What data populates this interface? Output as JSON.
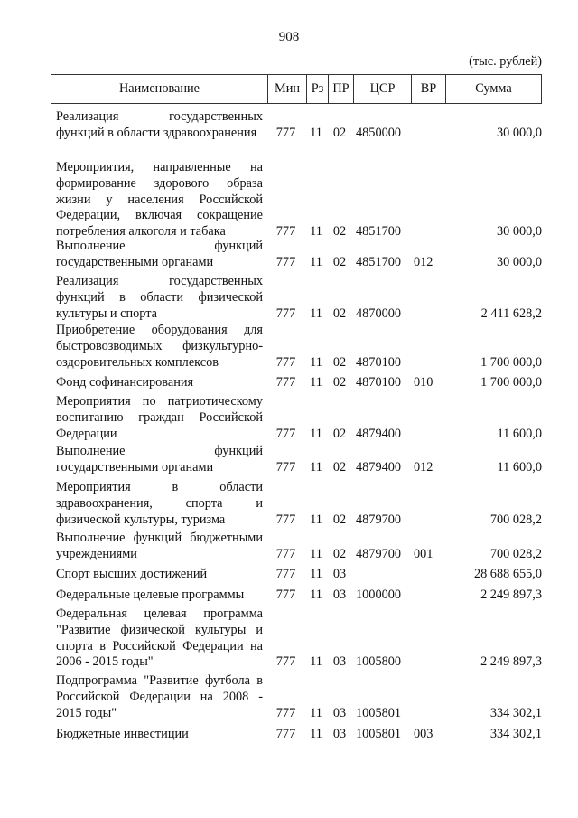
{
  "page_number": "908",
  "unit": "(тыс. рублей)",
  "headers": [
    "Наименование",
    "Мин",
    "Рз",
    "ПР",
    "ЦСР",
    "ВР",
    "Сумма"
  ],
  "rows": [
    {
      "name": "Реализация государственных функций в области здравоохранения",
      "min": "777",
      "rz": "11",
      "pr": "02",
      "csr": "4850000",
      "vr": "",
      "sum": "30 000,0"
    },
    {
      "name": "Мероприятия, направленные на формирование здорового образа жизни у населения Российской Федерации, включая сокращение потребления алкоголя и табака",
      "min": "777",
      "rz": "11",
      "pr": "02",
      "csr": "4851700",
      "vr": "",
      "sum": "30 000,0"
    },
    {
      "name": "Выполнение функций государственными органами",
      "min": "777",
      "rz": "11",
      "pr": "02",
      "csr": "4851700",
      "vr": "012",
      "sum": "30 000,0"
    },
    {
      "name": "Реализация государственных функций в области физической культуры и спорта",
      "min": "777",
      "rz": "11",
      "pr": "02",
      "csr": "4870000",
      "vr": "",
      "sum": "2 411 628,2"
    },
    {
      "name": "Приобретение оборудования для быстровозводимых физкультурно-оздоровительных комплексов",
      "min": "777",
      "rz": "11",
      "pr": "02",
      "csr": "4870100",
      "vr": "",
      "sum": "1 700 000,0"
    },
    {
      "name": "Фонд софинансирования",
      "min": "777",
      "rz": "11",
      "pr": "02",
      "csr": "4870100",
      "vr": "010",
      "sum": "1 700 000,0"
    },
    {
      "name": "Мероприятия по патриотическому воспитанию граждан Российской Федерации",
      "min": "777",
      "rz": "11",
      "pr": "02",
      "csr": "4879400",
      "vr": "",
      "sum": "11 600,0"
    },
    {
      "name": "Выполнение функций государственными органами",
      "min": "777",
      "rz": "11",
      "pr": "02",
      "csr": "4879400",
      "vr": "012",
      "sum": "11 600,0"
    },
    {
      "name": "Мероприятия в области здравоохранения, спорта и физической культуры, туризма",
      "min": "777",
      "rz": "11",
      "pr": "02",
      "csr": "4879700",
      "vr": "",
      "sum": "700 028,2"
    },
    {
      "name": "Выполнение функций бюджетными учреждениями",
      "min": "777",
      "rz": "11",
      "pr": "02",
      "csr": "4879700",
      "vr": "001",
      "sum": "700 028,2"
    },
    {
      "name": "Спорт высших достижений",
      "min": "777",
      "rz": "11",
      "pr": "03",
      "csr": "",
      "vr": "",
      "sum": "28 688 655,0"
    },
    {
      "name": "Федеральные целевые программы",
      "min": "777",
      "rz": "11",
      "pr": "03",
      "csr": "1000000",
      "vr": "",
      "sum": "2 249 897,3"
    },
    {
      "name": "Федеральная целевая программа \"Развитие физической культуры и спорта в Российской Федерации на 2006 - 2015 годы\"",
      "min": "777",
      "rz": "11",
      "pr": "03",
      "csr": "1005800",
      "vr": "",
      "sum": "2 249 897,3"
    },
    {
      "name": "Подпрограмма \"Развитие футбола в Российской Федерации на 2008 - 2015 годы\"",
      "min": "777",
      "rz": "11",
      "pr": "03",
      "csr": "1005801",
      "vr": "",
      "sum": "334 302,1"
    },
    {
      "name": "Бюджетные инвестиции",
      "min": "777",
      "rz": "11",
      "pr": "03",
      "csr": "1005801",
      "vr": "003",
      "sum": "334 302,1"
    }
  ]
}
